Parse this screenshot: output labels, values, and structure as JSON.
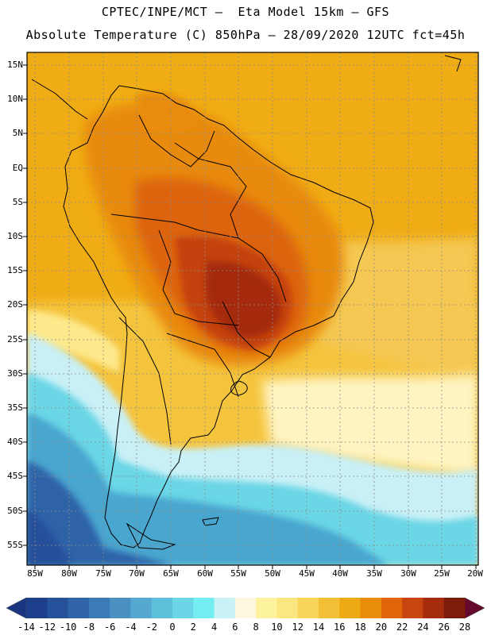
{
  "header": {
    "line1": "CPTEC/INPE/MCT –  Eta Model 15km – GFS",
    "line2": "Absolute Temperature (C) 850hPa – 28/09/2020 12UTC fct=45h"
  },
  "axes": {
    "lat_labels": [
      "15N",
      "10N",
      "5N",
      "EQ",
      "5S",
      "10S",
      "15S",
      "20S",
      "25S",
      "30S",
      "35S",
      "40S",
      "45S",
      "50S",
      "55S"
    ],
    "lon_labels": [
      "85W",
      "80W",
      "75W",
      "70W",
      "65W",
      "60W",
      "55W",
      "50W",
      "45W",
      "40W",
      "35W",
      "30W",
      "25W",
      "20W"
    ]
  },
  "colorbar": {
    "labels": [
      "-14",
      "-12",
      "-10",
      "-8",
      "-6",
      "-4",
      "-2",
      "0",
      "2",
      "4",
      "6",
      "8",
      "10",
      "12",
      "14",
      "16",
      "18",
      "20",
      "22",
      "24",
      "26",
      "28"
    ],
    "colors": [
      "#1d3f8c",
      "#25509a",
      "#2f64a8",
      "#3a7ab5",
      "#4a91c2",
      "#55a8cf",
      "#5fc0db",
      "#6ad6e6",
      "#74eef2",
      "#c9f2f7",
      "#fdf8df",
      "#fdf39f",
      "#fce67f",
      "#f8d459",
      "#f3bf36",
      "#eeaa14",
      "#e98c0a",
      "#df6508",
      "#c94510",
      "#a52c0d",
      "#7c1c0a"
    ],
    "under_color": "#1a3680",
    "over_color": "#650a2c"
  }
}
